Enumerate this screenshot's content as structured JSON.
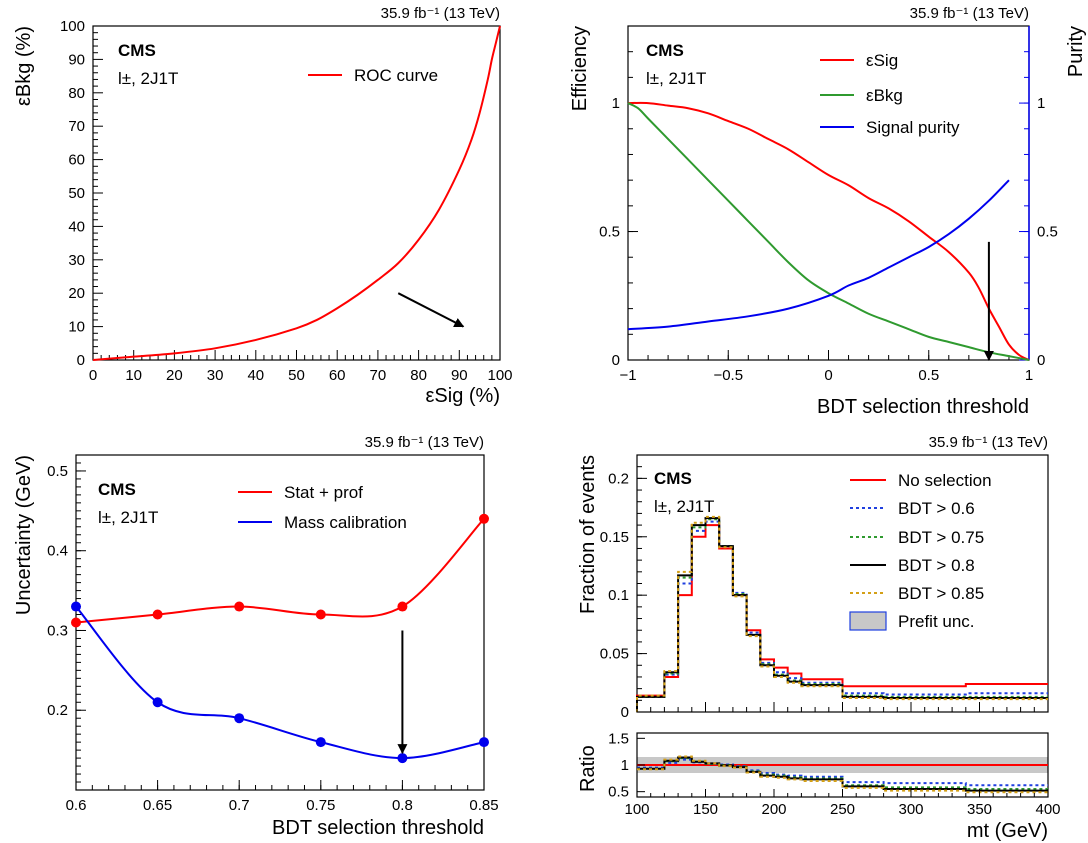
{
  "chart_data": [
    {
      "type": "line",
      "lumi_label": "35.9 fb⁻¹ (13 TeV)",
      "cms_label": "CMS",
      "channel_label": "l±, 2J1T",
      "xlabel": "εSig (%)",
      "ylabel": "εBkg (%)",
      "xlim": [
        0,
        100
      ],
      "ylim": [
        0,
        100
      ],
      "x_ticks": [
        "0",
        "10",
        "20",
        "30",
        "40",
        "50",
        "60",
        "70",
        "80",
        "90",
        "100"
      ],
      "y_ticks": [
        "0",
        "10",
        "20",
        "30",
        "40",
        "50",
        "60",
        "70",
        "80",
        "90",
        "100"
      ],
      "series": [
        {
          "name": "ROC curve",
          "color": "#ff0000",
          "x": [
            0,
            10,
            20,
            30,
            40,
            50,
            55,
            60,
            65,
            70,
            75,
            80,
            85,
            90,
            93,
            95,
            97,
            98,
            99,
            100
          ],
          "y": [
            0,
            1,
            2,
            3.5,
            6,
            9.5,
            12,
            15.5,
            19.5,
            24,
            29,
            36,
            45,
            57,
            66,
            74,
            84,
            90,
            95,
            100
          ]
        }
      ],
      "annotation_arrow": {
        "from": [
          75,
          20
        ],
        "to": [
          91,
          10
        ]
      }
    },
    {
      "type": "line",
      "lumi_label": "35.9 fb⁻¹ (13 TeV)",
      "cms_label": "CMS",
      "channel_label": "l±, 2J1T",
      "xlabel": "BDT selection threshold",
      "ylabel": "Efficiency",
      "y2label": "Purity",
      "xlim": [
        -1,
        1
      ],
      "ylim": [
        0,
        1.3
      ],
      "x_ticks": [
        "−1",
        "−0.5",
        "0",
        "0.5",
        "1"
      ],
      "y_ticks": [
        "0",
        "0.5",
        "1"
      ],
      "y2_ticks": [
        "0",
        "0.5",
        "1"
      ],
      "series": [
        {
          "name": "εSig",
          "color": "#ff0000",
          "x": [
            -1,
            -0.9,
            -0.8,
            -0.7,
            -0.6,
            -0.5,
            -0.4,
            -0.3,
            -0.2,
            -0.1,
            0,
            0.1,
            0.2,
            0.3,
            0.4,
            0.5,
            0.6,
            0.7,
            0.75,
            0.8,
            0.85,
            0.9,
            0.95,
            1.0
          ],
          "y": [
            1,
            1,
            0.99,
            0.98,
            0.96,
            0.93,
            0.9,
            0.86,
            0.82,
            0.77,
            0.72,
            0.68,
            0.63,
            0.59,
            0.54,
            0.48,
            0.42,
            0.34,
            0.28,
            0.2,
            0.13,
            0.06,
            0.02,
            0
          ]
        },
        {
          "name": "εBkg",
          "color": "#2f9a2f",
          "x": [
            -1,
            -0.95,
            -0.9,
            -0.8,
            -0.7,
            -0.6,
            -0.5,
            -0.4,
            -0.3,
            -0.2,
            -0.1,
            0,
            0.1,
            0.2,
            0.3,
            0.4,
            0.5,
            0.6,
            0.7,
            0.8,
            0.9,
            1.0
          ],
          "y": [
            1,
            0.98,
            0.94,
            0.86,
            0.78,
            0.7,
            0.62,
            0.54,
            0.46,
            0.38,
            0.31,
            0.26,
            0.22,
            0.18,
            0.15,
            0.12,
            0.09,
            0.07,
            0.05,
            0.03,
            0.015,
            0
          ]
        },
        {
          "name": "Signal purity",
          "color": "#0000ee",
          "axis": "right",
          "x": [
            -1,
            -0.8,
            -0.6,
            -0.4,
            -0.2,
            0,
            0.1,
            0.2,
            0.3,
            0.4,
            0.5,
            0.6,
            0.7,
            0.8,
            0.9
          ],
          "y": [
            0.12,
            0.13,
            0.15,
            0.17,
            0.2,
            0.25,
            0.29,
            0.32,
            0.36,
            0.4,
            0.44,
            0.49,
            0.55,
            0.62,
            0.7
          ]
        }
      ],
      "annotation_arrow": {
        "from": [
          0.8,
          0.46
        ],
        "to": [
          0.8,
          0.0
        ]
      }
    },
    {
      "type": "line",
      "lumi_label": "35.9 fb⁻¹ (13 TeV)",
      "cms_label": "CMS",
      "channel_label": "l±, 2J1T",
      "xlabel": "BDT selection threshold",
      "ylabel": "Uncertainty (GeV)",
      "xlim": [
        0.6,
        0.85
      ],
      "ylim": [
        0.1,
        0.52
      ],
      "x_ticks": [
        "0.6",
        "0.65",
        "0.7",
        "0.75",
        "0.8",
        "0.85"
      ],
      "y_ticks": [
        "0.2",
        "0.3",
        "0.4",
        "0.5"
      ],
      "series": [
        {
          "name": "Stat + prof",
          "color": "#ff0000",
          "x": [
            0.6,
            0.65,
            0.7,
            0.75,
            0.8,
            0.85
          ],
          "y": [
            0.31,
            0.32,
            0.33,
            0.32,
            0.33,
            0.44
          ]
        },
        {
          "name": "Mass calibration",
          "color": "#0000ee",
          "x": [
            0.6,
            0.65,
            0.7,
            0.75,
            0.8,
            0.85
          ],
          "y": [
            0.33,
            0.21,
            0.19,
            0.16,
            0.14,
            0.16
          ]
        }
      ],
      "annotation_arrow": {
        "from": [
          0.8,
          0.3
        ],
        "to": [
          0.8,
          0.14
        ]
      }
    },
    {
      "type": "line",
      "lumi_label": "35.9 fb⁻¹ (13 TeV)",
      "cms_label": "CMS",
      "channel_label": "l±, 2J1T",
      "xlabel": "mt (GeV)",
      "ylabel": "Fraction of events",
      "ratio_ylabel": "Ratio",
      "xlim": [
        100,
        400
      ],
      "ylim": [
        0,
        0.22
      ],
      "ratio_ylim": [
        0.4,
        1.6
      ],
      "x_ticks": [
        "100",
        "150",
        "200",
        "250",
        "300",
        "350",
        "400"
      ],
      "y_ticks": [
        "0",
        "0.05",
        "0.1",
        "0.15",
        "0.2"
      ],
      "ratio_y_ticks": [
        "0.5",
        "1",
        "1.5"
      ],
      "bin_edges": [
        100,
        120,
        130,
        140,
        150,
        160,
        170,
        180,
        190,
        200,
        210,
        220,
        250,
        280,
        340,
        400
      ],
      "uncertainty_band": {
        "name": "Prefit unc.",
        "low": 0.85,
        "high": 1.15
      },
      "series": [
        {
          "name": "No selection",
          "color": "#ff0000",
          "style": "solid",
          "values": [
            0.014,
            0.03,
            0.1,
            0.15,
            0.16,
            0.14,
            0.1,
            0.07,
            0.045,
            0.038,
            0.033,
            0.028,
            0.022,
            0.022,
            0.024
          ],
          "ratio": [
            1,
            1,
            1,
            1,
            1,
            1,
            1,
            1,
            1,
            1,
            1,
            1,
            1,
            1,
            1
          ]
        },
        {
          "name": "BDT > 0.6",
          "color": "#1f3fdf",
          "style": "dotted",
          "values": [
            0.013,
            0.032,
            0.11,
            0.155,
            0.163,
            0.142,
            0.102,
            0.068,
            0.042,
            0.034,
            0.029,
            0.025,
            0.016,
            0.015,
            0.016
          ],
          "ratio": [
            0.95,
            1.04,
            1.1,
            1.05,
            1.02,
            1.01,
            0.98,
            0.9,
            0.85,
            0.82,
            0.8,
            0.78,
            0.68,
            0.66,
            0.62
          ]
        },
        {
          "name": "BDT > 0.75",
          "color": "#2f9a2f",
          "style": "dotted",
          "values": [
            0.013,
            0.033,
            0.115,
            0.158,
            0.165,
            0.142,
            0.101,
            0.066,
            0.041,
            0.032,
            0.027,
            0.024,
            0.014,
            0.013,
            0.013
          ],
          "ratio": [
            0.93,
            1.07,
            1.13,
            1.06,
            1.02,
            1.0,
            0.97,
            0.88,
            0.82,
            0.8,
            0.77,
            0.75,
            0.62,
            0.58,
            0.55
          ]
        },
        {
          "name": "BDT > 0.8",
          "color": "#000000",
          "style": "solid",
          "values": [
            0.013,
            0.034,
            0.117,
            0.16,
            0.166,
            0.142,
            0.1,
            0.066,
            0.04,
            0.031,
            0.026,
            0.023,
            0.013,
            0.012,
            0.012
          ],
          "ratio": [
            0.93,
            1.08,
            1.14,
            1.06,
            1.03,
            0.99,
            0.96,
            0.87,
            0.8,
            0.78,
            0.75,
            0.73,
            0.6,
            0.55,
            0.52
          ]
        },
        {
          "name": "BDT > 0.85",
          "color": "#d4a017",
          "style": "dotted",
          "values": [
            0.014,
            0.035,
            0.12,
            0.162,
            0.167,
            0.141,
            0.099,
            0.065,
            0.039,
            0.03,
            0.025,
            0.022,
            0.012,
            0.011,
            0.011
          ],
          "ratio": [
            0.92,
            1.1,
            1.16,
            1.08,
            1.03,
            0.98,
            0.95,
            0.86,
            0.78,
            0.76,
            0.73,
            0.7,
            0.57,
            0.52,
            0.49
          ]
        }
      ]
    }
  ]
}
